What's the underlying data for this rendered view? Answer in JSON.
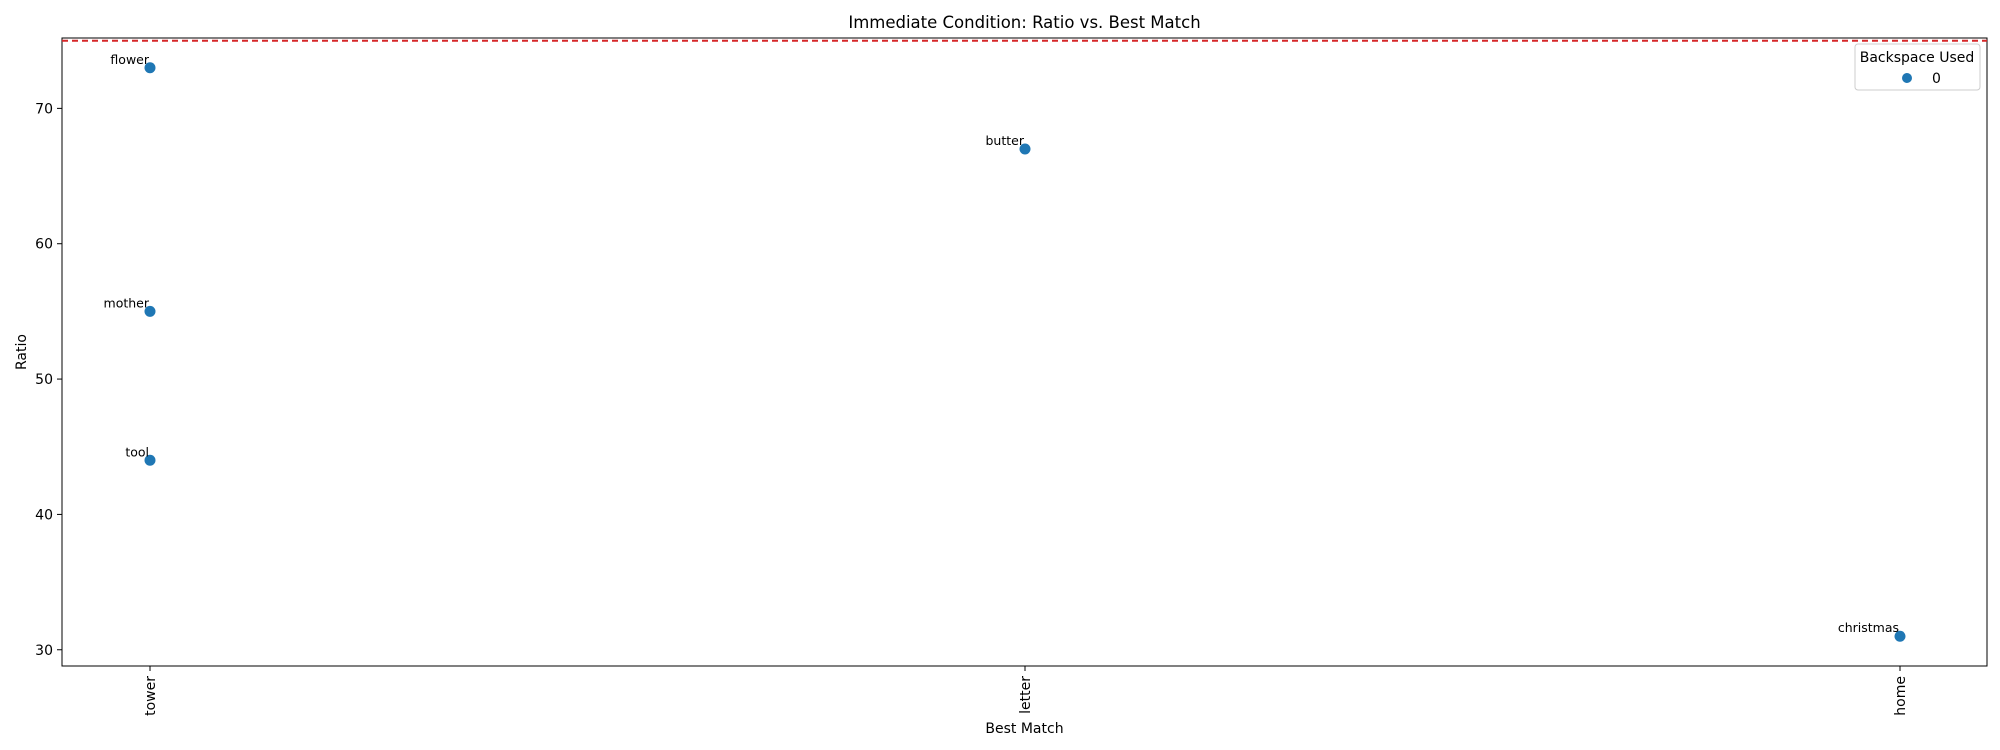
{
  "chart_data": {
    "type": "scatter",
    "title": "Immediate Condition: Ratio vs. Best Match",
    "xlabel": "Best Match",
    "ylabel": "Ratio",
    "categories": [
      "tower",
      "letter",
      "home"
    ],
    "ylim": [
      28.8,
      75.2
    ],
    "yticks": [
      30,
      40,
      50,
      60,
      70
    ],
    "reference_line": {
      "y": 75,
      "style": "dashed",
      "color": "#d62728"
    },
    "grid": false,
    "legend": {
      "title": "Backspace Used",
      "placement": "top-right"
    },
    "series": [
      {
        "name": "0",
        "color": "#1f77b4",
        "points": [
          {
            "x": "tower",
            "y": 73,
            "label": "flower"
          },
          {
            "x": "tower",
            "y": 55,
            "label": "mother"
          },
          {
            "x": "tower",
            "y": 44,
            "label": "tool"
          },
          {
            "x": "letter",
            "y": 67,
            "label": "butter"
          },
          {
            "x": "home",
            "y": 31,
            "label": "christmas"
          }
        ]
      }
    ]
  }
}
